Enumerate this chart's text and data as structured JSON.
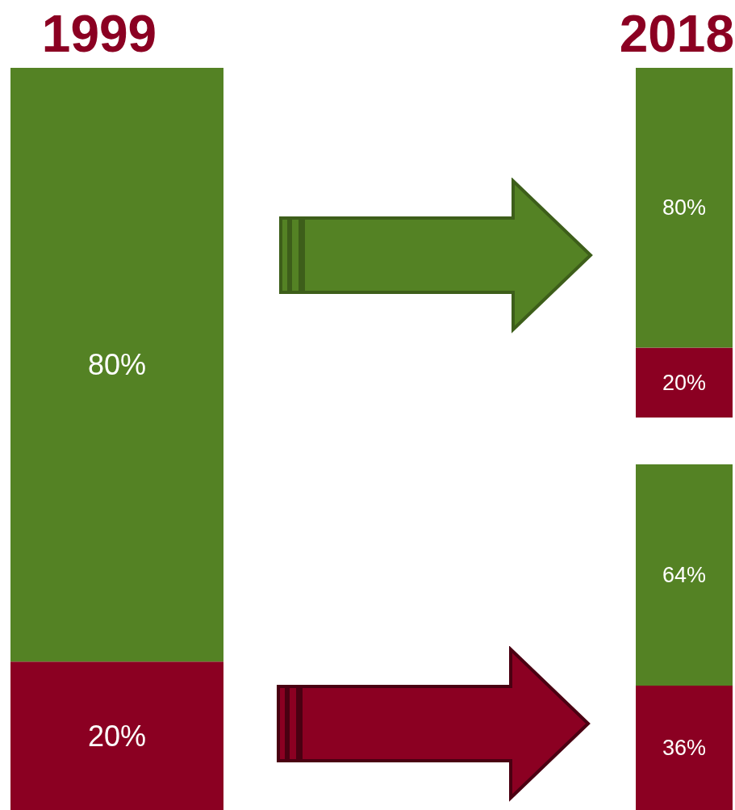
{
  "chart_data": [
    {
      "type": "bar",
      "title": "1999",
      "categories": [
        null
      ],
      "stacked": true,
      "series": [
        {
          "color": "#8b0022",
          "values": [
            20
          ],
          "value_labels": [
            "20%"
          ]
        },
        {
          "color": "#548224",
          "values": [
            80
          ],
          "value_labels": [
            "80%"
          ]
        }
      ]
    },
    {
      "type": "bar",
      "title": "2018",
      "categories": [
        null
      ],
      "stacked": true,
      "series": [
        {
          "color": "#8b0022",
          "values": [
            20
          ],
          "value_labels": [
            "20%"
          ]
        },
        {
          "color": "#548224",
          "values": [
            80
          ],
          "value_labels": [
            "80%"
          ]
        }
      ]
    },
    {
      "type": "bar",
      "categories": [
        null
      ],
      "stacked": true,
      "series": [
        {
          "color": "#8b0022",
          "values": [
            36
          ],
          "value_labels": [
            "36%"
          ]
        },
        {
          "color": "#548224",
          "values": [
            64
          ],
          "value_labels": [
            "64%"
          ]
        }
      ]
    }
  ]
}
